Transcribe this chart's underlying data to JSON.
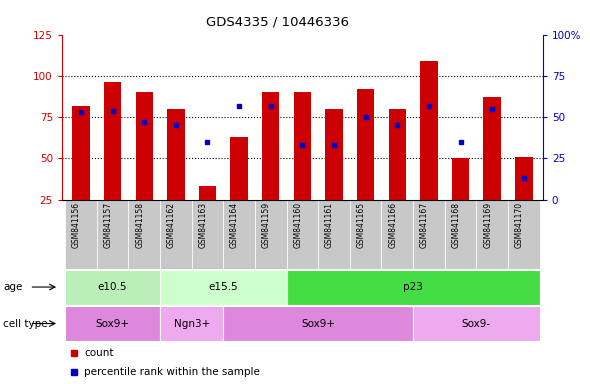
{
  "title": "GDS4335 / 10446336",
  "samples": [
    "GSM841156",
    "GSM841157",
    "GSM841158",
    "GSM841162",
    "GSM841163",
    "GSM841164",
    "GSM841159",
    "GSM841160",
    "GSM841161",
    "GSM841165",
    "GSM841166",
    "GSM841167",
    "GSM841168",
    "GSM841169",
    "GSM841170"
  ],
  "count_values": [
    82,
    96,
    90,
    80,
    33,
    63,
    90,
    90,
    80,
    92,
    80,
    109,
    50,
    87,
    51
  ],
  "percentile_values": [
    53,
    54,
    47,
    45,
    35,
    57,
    57,
    33,
    33,
    50,
    45,
    57,
    35,
    55,
    13
  ],
  "left_ylim": [
    25,
    125
  ],
  "left_yticks": [
    25,
    50,
    75,
    100,
    125
  ],
  "right_ylim": [
    0,
    100
  ],
  "right_yticks": [
    0,
    25,
    50,
    75,
    100
  ],
  "right_yticklabels": [
    "0",
    "25",
    "50",
    "75",
    "100%"
  ],
  "bar_color": "#cc0000",
  "percentile_color": "#0000cc",
  "bar_background": "#c8c8c8",
  "age_groups": [
    {
      "label": "e10.5",
      "start": 0,
      "end": 3,
      "color": "#b8f0b8"
    },
    {
      "label": "e15.5",
      "start": 3,
      "end": 7,
      "color": "#ccffcc"
    },
    {
      "label": "p23",
      "start": 7,
      "end": 15,
      "color": "#44dd44"
    }
  ],
  "cell_type_groups": [
    {
      "label": "Sox9+",
      "start": 0,
      "end": 3,
      "color": "#dd88dd"
    },
    {
      "label": "Ngn3+",
      "start": 3,
      "end": 5,
      "color": "#eeaaee"
    },
    {
      "label": "Sox9+",
      "start": 5,
      "end": 11,
      "color": "#dd88dd"
    },
    {
      "label": "Sox9-",
      "start": 11,
      "end": 15,
      "color": "#eeaaee"
    }
  ],
  "right_axis_color": "#0000cc",
  "left_axis_color": "#cc0000",
  "dotted_levels": [
    50,
    75,
    100
  ]
}
